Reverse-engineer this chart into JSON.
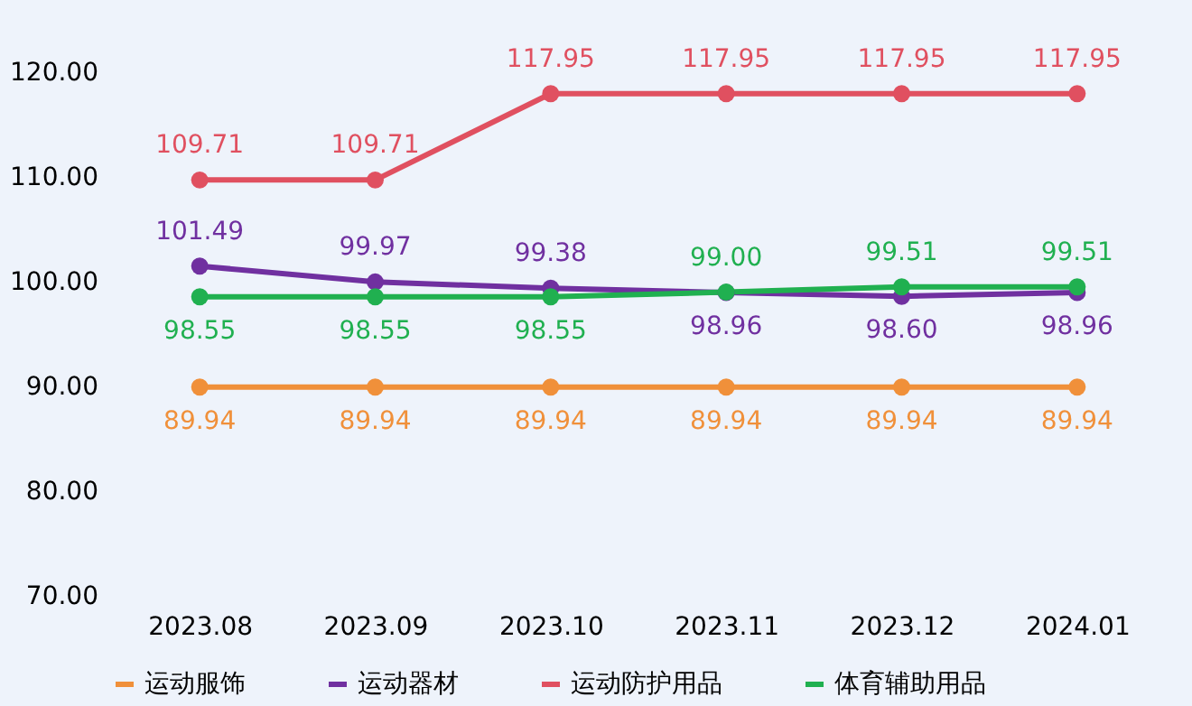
{
  "chart_data": {
    "type": "line",
    "categories": [
      "2023.08",
      "2023.09",
      "2023.10",
      "2023.11",
      "2023.12",
      "2024.01"
    ],
    "series": [
      {
        "name": "运动服饰",
        "color": "#f0903a",
        "values": [
          89.94,
          89.94,
          89.94,
          89.94,
          89.94,
          89.94
        ],
        "value_labels": [
          "89.94",
          "89.94",
          "89.94",
          "89.94",
          "89.94",
          "89.94"
        ]
      },
      {
        "name": "运动器材",
        "color": "#7030a0",
        "values": [
          101.49,
          99.97,
          99.38,
          98.96,
          98.6,
          98.96
        ],
        "value_labels": [
          "101.49",
          "99.97",
          "99.38",
          "98.96",
          "98.60",
          "98.96"
        ]
      },
      {
        "name": "运动防护用品",
        "color": "#e05060",
        "values": [
          109.71,
          109.71,
          117.95,
          117.95,
          117.95,
          117.95
        ],
        "value_labels": [
          "109.71",
          "109.71",
          "117.95",
          "117.95",
          "117.95",
          "117.95"
        ]
      },
      {
        "name": "体育辅助用品",
        "color": "#20b050",
        "values": [
          98.55,
          98.55,
          98.55,
          99.0,
          99.51,
          99.51
        ],
        "value_labels": [
          "98.55",
          "98.55",
          "98.55",
          "99.00",
          "99.51",
          "99.51"
        ]
      }
    ],
    "ylim": [
      70,
      120
    ],
    "yticks": [
      {
        "value": 70,
        "label": "70.00"
      },
      {
        "value": 80,
        "label": "80.00"
      },
      {
        "value": 90,
        "label": "90.00"
      },
      {
        "value": 100,
        "label": "100.00"
      },
      {
        "value": 110,
        "label": "110.00"
      },
      {
        "value": 120,
        "label": "120.00"
      }
    ],
    "legend": "bottom",
    "grid": false,
    "marker": "circle",
    "line_style": "solid"
  }
}
